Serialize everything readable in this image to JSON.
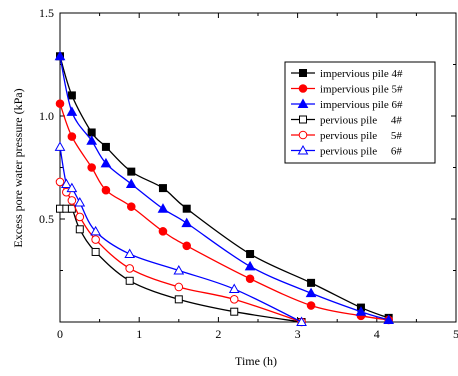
{
  "chart_data": {
    "type": "line",
    "xlabel": "Time (h)",
    "ylabel": "Excess pore water pressure (kPa)",
    "xlim": [
      0,
      5
    ],
    "ylim": [
      0,
      1.5
    ],
    "xticks": [
      "0",
      "1",
      "2",
      "3",
      "4",
      "5"
    ],
    "yticks": [
      "0.5",
      "1.0",
      "1.5"
    ],
    "legend_position": "top-right",
    "series": [
      {
        "name": "impervious pile 4#",
        "color": "#000000",
        "marker": "square-filled",
        "x": [
          0,
          0.15,
          0.4,
          0.58,
          0.9,
          1.3,
          1.6,
          2.4,
          3.17,
          3.8,
          4.15
        ],
        "y": [
          1.29,
          1.1,
          0.92,
          0.85,
          0.73,
          0.65,
          0.55,
          0.33,
          0.19,
          0.07,
          0.02
        ]
      },
      {
        "name": "impervious pile 5#",
        "color": "#ff0000",
        "marker": "circle-filled",
        "x": [
          0,
          0.15,
          0.4,
          0.58,
          0.9,
          1.3,
          1.6,
          2.4,
          3.17,
          3.8,
          4.15
        ],
        "y": [
          1.06,
          0.9,
          0.75,
          0.64,
          0.56,
          0.44,
          0.37,
          0.21,
          0.08,
          0.03,
          0.01
        ]
      },
      {
        "name": "impervious pile 6#",
        "color": "#0000ff",
        "marker": "triangle-filled",
        "x": [
          0,
          0.15,
          0.4,
          0.58,
          0.9,
          1.3,
          1.6,
          2.4,
          3.17,
          3.8,
          4.15
        ],
        "y": [
          1.29,
          1.02,
          0.88,
          0.77,
          0.67,
          0.55,
          0.48,
          0.27,
          0.14,
          0.05,
          0.01
        ]
      },
      {
        "name": "pervious pile     4#",
        "color": "#000000",
        "marker": "square-open",
        "x": [
          0,
          0.08,
          0.15,
          0.25,
          0.45,
          0.88,
          1.5,
          2.2,
          3.05
        ],
        "y": [
          0.55,
          0.55,
          0.55,
          0.45,
          0.34,
          0.2,
          0.11,
          0.05,
          0.0
        ]
      },
      {
        "name": "pervious pile     5#",
        "color": "#ff0000",
        "marker": "circle-open",
        "x": [
          0,
          0.08,
          0.15,
          0.25,
          0.45,
          0.88,
          1.5,
          2.2,
          3.05
        ],
        "y": [
          0.68,
          0.63,
          0.59,
          0.51,
          0.4,
          0.26,
          0.17,
          0.11,
          0.0
        ]
      },
      {
        "name": "pervious pile     6#",
        "color": "#0000ff",
        "marker": "triangle-open",
        "x": [
          0,
          0.08,
          0.15,
          0.25,
          0.45,
          0.88,
          1.5,
          2.2,
          3.05
        ],
        "y": [
          0.85,
          0.67,
          0.65,
          0.58,
          0.44,
          0.33,
          0.25,
          0.16,
          0.0
        ]
      }
    ]
  }
}
